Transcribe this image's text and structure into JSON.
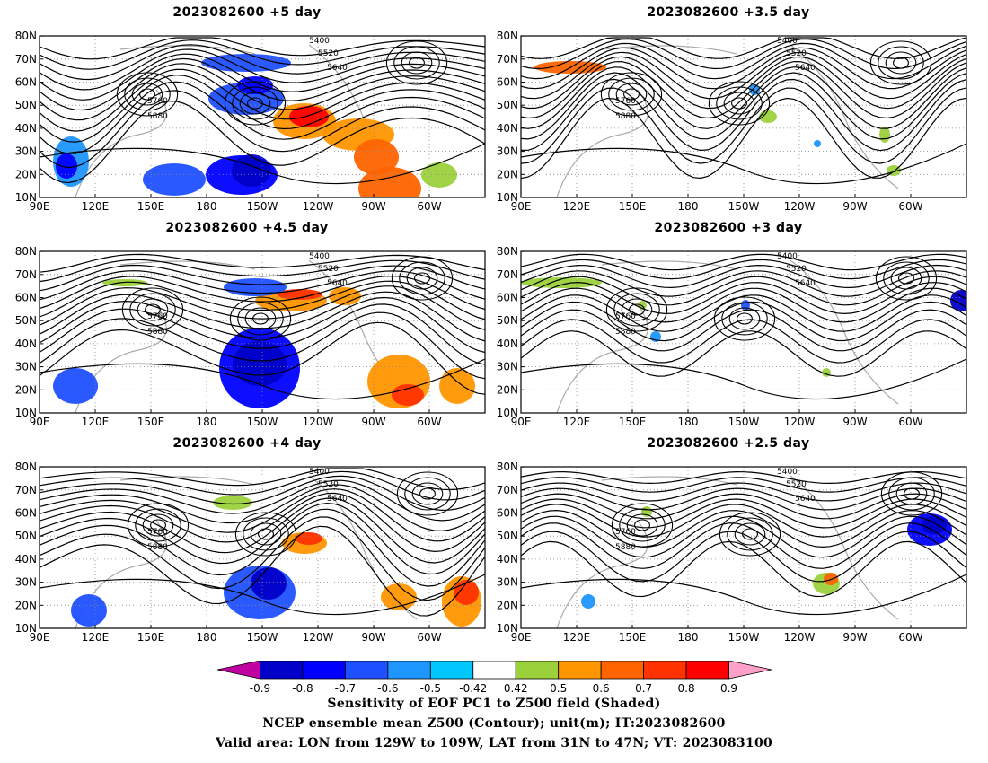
{
  "panels": [
    {
      "title": "2023082600  +5 day",
      "lead": "+5 day"
    },
    {
      "title": "2023082600  +3.5 day",
      "lead": "+3.5 day"
    },
    {
      "title": "2023082600  +4.5 day",
      "lead": "+4.5 day"
    },
    {
      "title": "2023082600  +3 day",
      "lead": "+3 day"
    },
    {
      "title": "2023082600  +4 day",
      "lead": "+4 day"
    },
    {
      "title": "2023082600  +2.5 day",
      "lead": "+2.5 day"
    }
  ],
  "axes": {
    "lat_labels": [
      "10N",
      "20N",
      "30N",
      "40N",
      "50N",
      "60N",
      "70N",
      "80N"
    ],
    "lon_labels": [
      "90E",
      "120E",
      "150E",
      "180",
      "150W",
      "120W",
      "90W",
      "60W"
    ]
  },
  "contour_levels": [
    "5400",
    "5520",
    "5640",
    "5760",
    "5880"
  ],
  "colorbar": {
    "ticks": [
      "-0.9",
      "-0.8",
      "-0.7",
      "-0.6",
      "-0.5",
      "-0.42",
      "0.42",
      "0.5",
      "0.6",
      "0.7",
      "0.8",
      "0.9"
    ],
    "colors": [
      "#c000a0",
      "#0000c8",
      "#0000ff",
      "#1e50ff",
      "#1e96ff",
      "#00c8ff",
      "#ffffff",
      "#9bd23c",
      "#ff9600",
      "#ff6400",
      "#ff3200",
      "#ff0000",
      "#ffa0c8"
    ]
  },
  "captions": {
    "line1": "Sensitivity of EOF PC1 to Z500 field (Shaded)",
    "line2": "NCEP ensemble mean Z500 (Contour); unit(m); IT:2023082600",
    "line3": "Valid area: LON from 129W to 109W, LAT from 31N to 47N; VT: 2023083100"
  }
}
